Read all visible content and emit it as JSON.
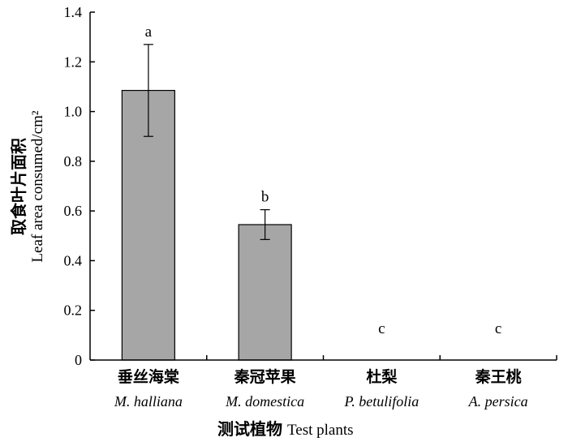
{
  "chart_data": {
    "type": "bar",
    "title": "",
    "categories": [
      {
        "cn": "垂丝海棠",
        "en": "M. halliana"
      },
      {
        "cn": "秦冠苹果",
        "en": "M. domestica"
      },
      {
        "cn": "杜梨",
        "en": "P. betulifolia"
      },
      {
        "cn": "秦王桃",
        "en": "A. persica"
      }
    ],
    "values": [
      1.085,
      0.545,
      0,
      0
    ],
    "errors": [
      0.185,
      0.06,
      0,
      0
    ],
    "significance": [
      "a",
      "b",
      "c",
      "c"
    ],
    "xlabel": {
      "cn": "测试植物",
      "en": "Test plants"
    },
    "ylabel": {
      "cn": "取食叶片面积",
      "en": "Leaf area consumed/cm²"
    },
    "ylim": [
      0,
      1.4
    ],
    "yticks": [
      "0",
      "0.2",
      "0.4",
      "0.6",
      "0.8",
      "1.0",
      "1.2",
      "1.4"
    ],
    "bar_color": "#a6a6a6",
    "grid": false,
    "legend": "none"
  }
}
